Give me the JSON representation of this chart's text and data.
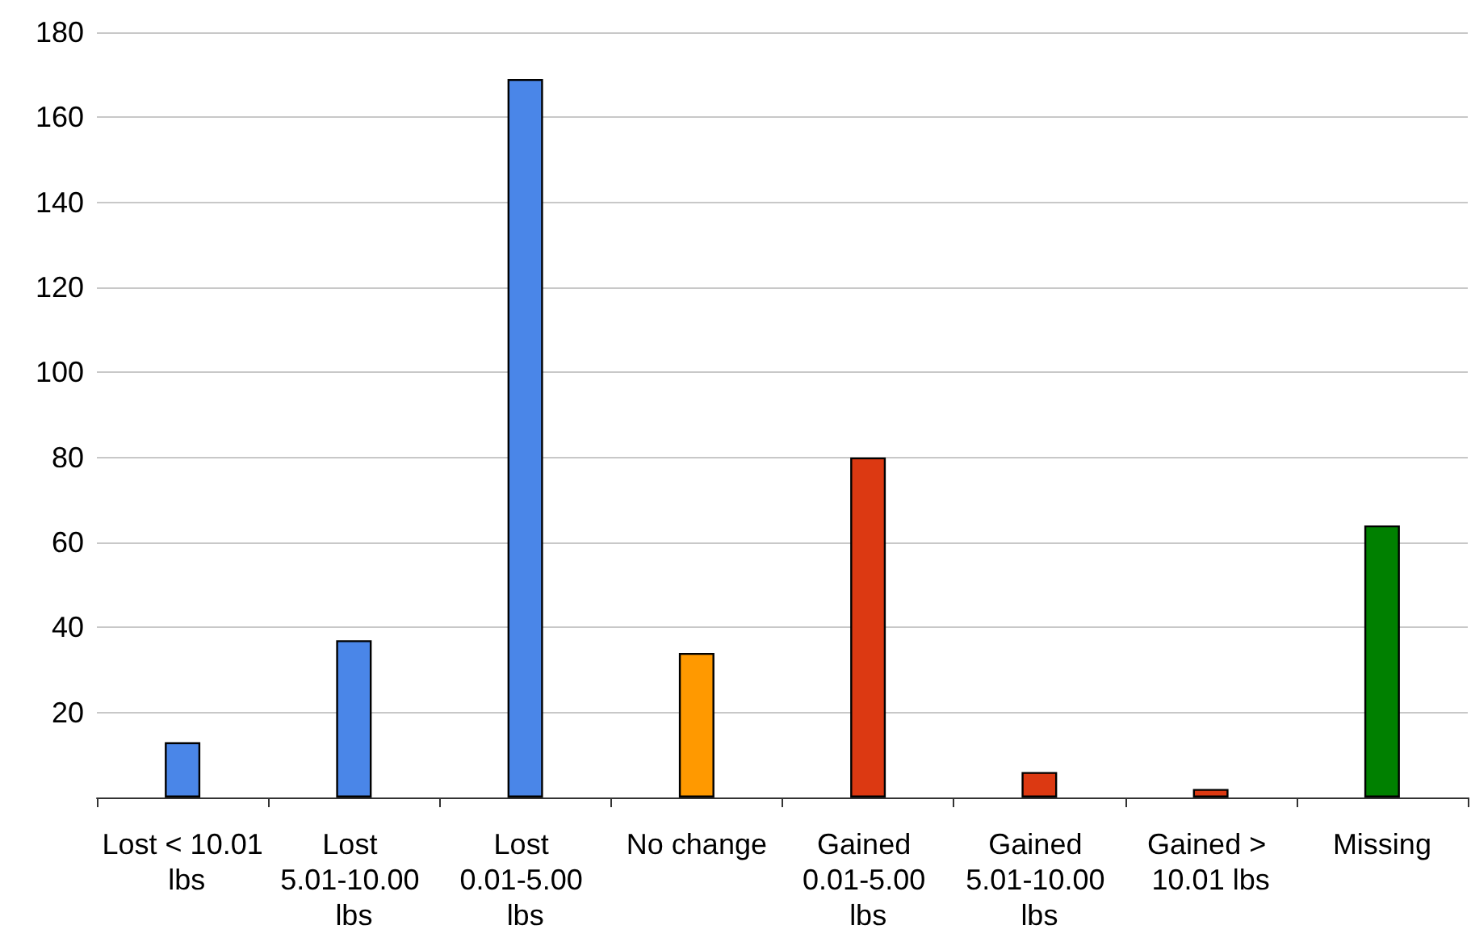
{
  "chart_data": {
    "type": "bar",
    "categories": [
      "Lost < 10.01 lbs",
      "Lost 5.01-10.00 lbs",
      "Lost 0.01-5.00 lbs",
      "No change",
      "Gained 0.01-5.00 lbs",
      "Gained 5.01-10.00 lbs",
      "Gained > 10.01 lbs",
      "Missing"
    ],
    "values": [
      13,
      37,
      169,
      34,
      80,
      6,
      2,
      64
    ],
    "colors": [
      "#4a86e8",
      "#4a86e8",
      "#4a86e8",
      "#ff9900",
      "#dc3912",
      "#dc3912",
      "#dc3912",
      "#008000"
    ],
    "ylim": [
      0,
      180
    ],
    "yticks": [
      20,
      40,
      60,
      80,
      100,
      120,
      140,
      160,
      180
    ],
    "grid": "y"
  }
}
